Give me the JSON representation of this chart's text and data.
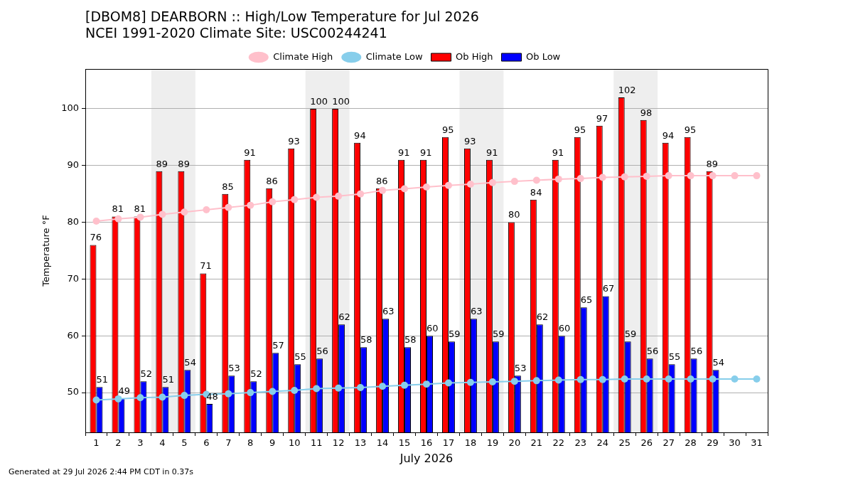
{
  "chart_data": {
    "type": "bar",
    "title": "[DBOM8] DEARBORN :: High/Low Temperature for Jul 2026",
    "subtitle": "NCEI 1991-2020 Climate Site: USC00244241",
    "xlabel": "July 2026",
    "ylabel": "Temperature °F",
    "annotations": [
      "Generated at 29 Jul 2026 2:44 PM CDT in 0.37s"
    ],
    "x": [
      1,
      2,
      3,
      4,
      5,
      6,
      7,
      8,
      9,
      10,
      11,
      12,
      13,
      14,
      15,
      16,
      17,
      18,
      19,
      20,
      21,
      22,
      23,
      24,
      25,
      26,
      27,
      28,
      29,
      30,
      31
    ],
    "xlim": [
      0.5,
      31.5
    ],
    "xticks": [
      1,
      2,
      3,
      4,
      5,
      6,
      7,
      8,
      9,
      10,
      11,
      12,
      13,
      14,
      15,
      16,
      17,
      18,
      19,
      20,
      21,
      22,
      23,
      24,
      25,
      26,
      27,
      28,
      29,
      30,
      31
    ],
    "ylim": [
      43,
      107
    ],
    "yticks": [
      50,
      60,
      70,
      80,
      90,
      100
    ],
    "grid": "y",
    "legend": "top",
    "marker": "circle",
    "bands": [
      {
        "axis": "x",
        "from": 3.5,
        "to": 5.5,
        "color": "#eeeeee"
      },
      {
        "axis": "x",
        "from": 10.5,
        "to": 12.5,
        "color": "#eeeeee"
      },
      {
        "axis": "x",
        "from": 17.5,
        "to": 19.5,
        "color": "#eeeeee"
      },
      {
        "axis": "x",
        "from": 24.5,
        "to": 26.5,
        "color": "#eeeeee"
      }
    ],
    "series": [
      {
        "name": "Climate High",
        "type": "line",
        "color": "#ffc0cb",
        "values": [
          80.2,
          80.6,
          80.9,
          81.4,
          81.8,
          82.2,
          82.6,
          83.0,
          83.6,
          84.0,
          84.4,
          84.6,
          85.0,
          85.6,
          85.9,
          86.2,
          86.5,
          86.7,
          87.0,
          87.2,
          87.4,
          87.6,
          87.7,
          87.9,
          88.0,
          88.1,
          88.2,
          88.2,
          88.2,
          88.2,
          88.2
        ]
      },
      {
        "name": "Climate Low",
        "type": "line",
        "color": "#87ceeb",
        "values": [
          48.7,
          48.9,
          49.1,
          49.2,
          49.5,
          49.7,
          49.8,
          50.0,
          50.2,
          50.4,
          50.7,
          50.8,
          50.9,
          51.1,
          51.3,
          51.5,
          51.7,
          51.8,
          51.9,
          52.0,
          52.1,
          52.2,
          52.3,
          52.3,
          52.4,
          52.4,
          52.4,
          52.4,
          52.4,
          52.4,
          52.4
        ]
      },
      {
        "name": "Ob High",
        "color": "#ff0000",
        "values": [
          76,
          81,
          81,
          89,
          89,
          71,
          85,
          91,
          86,
          93,
          100,
          100,
          94,
          86,
          91,
          91,
          95,
          93,
          91,
          80,
          84,
          91,
          95,
          97,
          102,
          98,
          94,
          95,
          89,
          null,
          null
        ],
        "value_labels": [
          "76",
          "81",
          "81",
          "89",
          "89",
          "71",
          "85",
          "91",
          "86",
          "93",
          "100",
          "100",
          "94",
          "86",
          "91",
          "91",
          "95",
          "93",
          "91",
          "80",
          "84",
          "91",
          "95",
          "97",
          "102",
          "98",
          "94",
          "95",
          "89",
          null,
          null
        ]
      },
      {
        "name": "Ob Low",
        "color": "#0000ff",
        "values": [
          51,
          49,
          52,
          51,
          54,
          48,
          53,
          52,
          57,
          55,
          56,
          62,
          58,
          63,
          58,
          60,
          59,
          63,
          59,
          53,
          62,
          60,
          65,
          67,
          59,
          56,
          55,
          56,
          54,
          null,
          null
        ],
        "value_labels": [
          "51",
          "49",
          "52",
          "51",
          "54",
          "48",
          "53",
          "52",
          "57",
          "55",
          "56",
          "62",
          "58",
          "63",
          "58",
          "60",
          "59",
          "63",
          "59",
          "53",
          "62",
          "60",
          "65",
          "67",
          "59",
          "56",
          "55",
          "56",
          "54",
          null,
          null
        ]
      }
    ]
  }
}
